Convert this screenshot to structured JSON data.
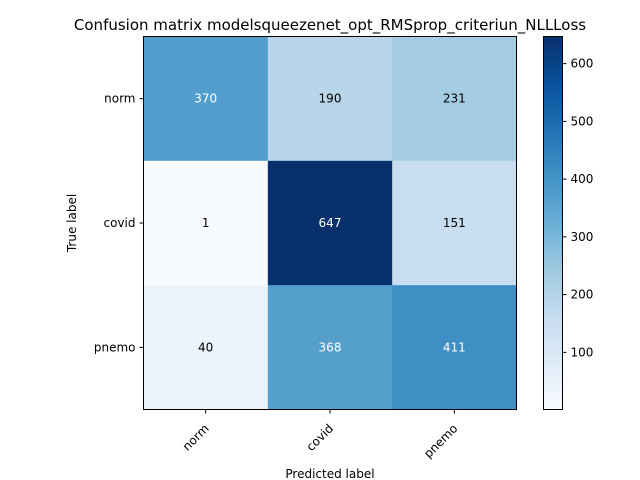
{
  "chart_data": {
    "type": "heatmap",
    "title": "Confusion matrix modelsqueezenet_opt_RMSprop_criteriun_NLLLoss",
    "xlabel": "Predicted label",
    "ylabel": "True label",
    "x_categories": [
      "norm",
      "covid",
      "pnemo"
    ],
    "y_categories": [
      "norm",
      "covid",
      "pnemo"
    ],
    "values": [
      [
        370,
        190,
        231
      ],
      [
        1,
        647,
        151
      ],
      [
        40,
        368,
        411
      ]
    ],
    "colormap": "Blues",
    "colorbar": {
      "ticks": [
        100,
        200,
        300,
        400,
        500,
        600
      ],
      "range": [
        1,
        647
      ]
    },
    "x_tick_rotation": 45,
    "text_color_dark": "#000000",
    "text_color_light": "#ffffff"
  }
}
